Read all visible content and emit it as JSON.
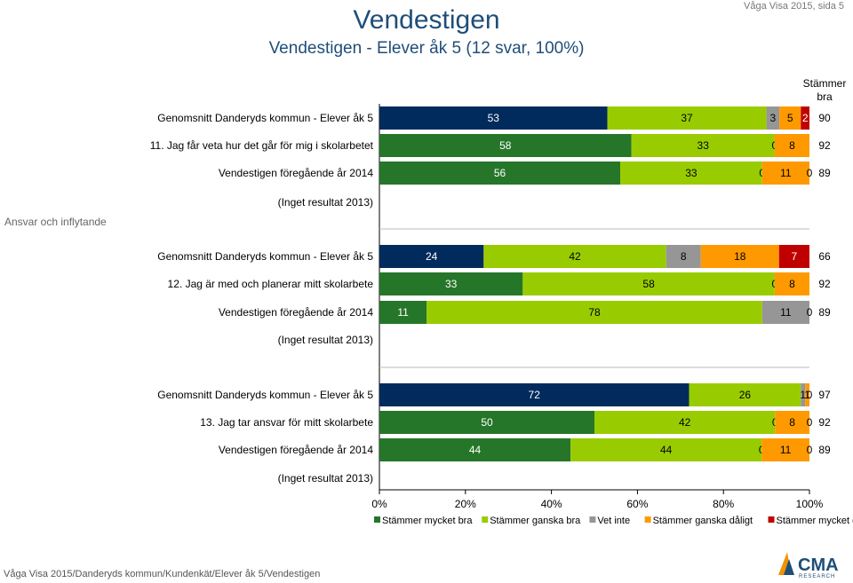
{
  "header": {
    "title": "Vendestigen",
    "subtitle": "Vendestigen - Elever åk 5 (12 svar, 100%)",
    "page_label": "Våga Visa 2015, sida 5",
    "column_head": "Stämmer bra"
  },
  "section_label": "Ansvar och inflytande",
  "footer": "Våga Visa 2015/Danderyds kommun/Kundenkät/Elever åk 5/Vendestigen",
  "logo": {
    "text": "CMA",
    "subtext": "RESEARCH"
  },
  "chart_data": {
    "type": "bar",
    "orientation": "horizontal-stacked-100",
    "xlim": [
      0,
      100
    ],
    "x_ticks": [
      "0%",
      "20%",
      "40%",
      "60%",
      "80%",
      "100%"
    ],
    "legend": [
      "Stämmer mycket bra",
      "Stämmer ganska bra",
      "Vet inte",
      "Stämmer ganska dåligt",
      "Stämmer mycket dåligt"
    ],
    "colors": [
      "#002b5c",
      "#99cc00",
      "#969696",
      "#ff9900",
      "#c00000"
    ],
    "colors_alt": [
      "#267629",
      "#99cc00",
      "#969696",
      "#ff9900",
      "#c00000"
    ],
    "groups": [
      {
        "question": "11. Jag får veta hur det går för mig i skolarbetet",
        "rows": [
          {
            "label": "Genomsnitt Danderyds kommun - Elever åk 5",
            "kind": "avg",
            "values": [
              53,
              37,
              3,
              5,
              2
            ],
            "labels": [
              "53",
              "37",
              "3",
              "5",
              "2"
            ],
            "bra": "90"
          },
          {
            "label": "11. Jag får veta hur det går för mig i skolarbetet",
            "kind": "question",
            "values": [
              58,
              33,
              0,
              8,
              0
            ],
            "labels": [
              "58",
              "33",
              "0",
              "8",
              ""
            ],
            "bra": "92"
          },
          {
            "label": "Vendestigen föregående år 2014",
            "kind": "prev",
            "values": [
              56,
              33,
              0,
              11,
              0
            ],
            "labels": [
              "56",
              "33",
              "0",
              "11",
              "0"
            ],
            "bra": "89"
          },
          {
            "label": "(Inget resultat 2013)",
            "kind": "none",
            "values": [],
            "labels": [],
            "bra": ""
          }
        ]
      },
      {
        "question": "12. Jag är med och planerar mitt skolarbete",
        "rows": [
          {
            "label": "Genomsnitt Danderyds kommun - Elever åk 5",
            "kind": "avg",
            "values": [
              24,
              42,
              8,
              18,
              7
            ],
            "labels": [
              "24",
              "42",
              "8",
              "18",
              "7"
            ],
            "bra": "66"
          },
          {
            "label": "12. Jag är med och planerar mitt skolarbete",
            "kind": "question",
            "values": [
              33,
              58,
              0,
              8,
              0
            ],
            "labels": [
              "33",
              "58",
              "0",
              "8",
              ""
            ],
            "bra": "92"
          },
          {
            "label": "Vendestigen föregående år 2014",
            "kind": "prev",
            "values": [
              11,
              78,
              11,
              0,
              0
            ],
            "labels": [
              "11",
              "78",
              "11",
              "0",
              ""
            ],
            "bra": "89"
          },
          {
            "label": "(Inget resultat 2013)",
            "kind": "none",
            "values": [],
            "labels": [],
            "bra": ""
          }
        ]
      },
      {
        "question": "13. Jag tar ansvar för mitt skolarbete",
        "rows": [
          {
            "label": "Genomsnitt Danderyds kommun - Elever åk 5",
            "kind": "avg",
            "values": [
              72,
              26,
              1,
              1,
              0
            ],
            "labels": [
              "72",
              "26",
              "1",
              "1",
              "0"
            ],
            "bra": "97"
          },
          {
            "label": "13. Jag tar ansvar för mitt skolarbete",
            "kind": "question",
            "values": [
              50,
              42,
              0,
              8,
              0
            ],
            "labels": [
              "50",
              "42",
              "0",
              "8",
              "0"
            ],
            "bra": "92"
          },
          {
            "label": "Vendestigen föregående år 2014",
            "kind": "prev",
            "values": [
              44,
              44,
              0,
              11,
              0
            ],
            "labels": [
              "44",
              "44",
              "0",
              "11",
              "0"
            ],
            "bra": "89"
          },
          {
            "label": "(Inget resultat 2013)",
            "kind": "none",
            "values": [],
            "labels": [],
            "bra": ""
          }
        ]
      }
    ]
  }
}
